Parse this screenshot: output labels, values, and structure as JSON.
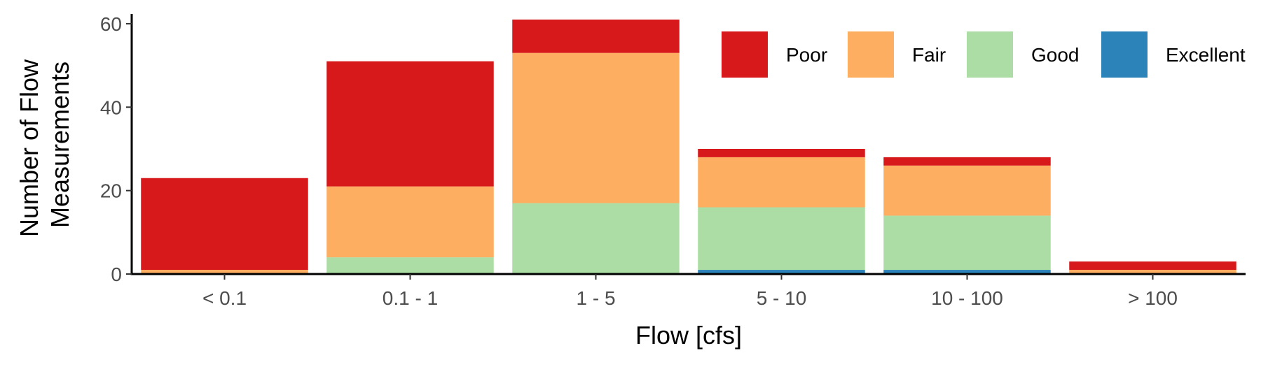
{
  "chart_data": {
    "type": "bar",
    "stacked": true,
    "title": "",
    "xlabel": "Flow [cfs]",
    "ylabel_lines": [
      "Number of Flow",
      "Measurements"
    ],
    "ylim": [
      0,
      62
    ],
    "yticks": [
      0,
      20,
      40,
      60
    ],
    "grid": false,
    "legend_position": "top-right",
    "categories": [
      "< 0.1",
      "0.1 - 1",
      "1 - 5",
      "5 - 10",
      "10 - 100",
      "> 100"
    ],
    "series": [
      {
        "name": "Excellent",
        "color": "#2b83ba",
        "values": [
          0,
          0,
          0,
          1,
          1,
          0
        ]
      },
      {
        "name": "Good",
        "color": "#abdda4",
        "values": [
          0,
          4,
          17,
          15,
          13,
          0
        ]
      },
      {
        "name": "Fair",
        "color": "#fdae61",
        "values": [
          1,
          17,
          36,
          12,
          12,
          1
        ]
      },
      {
        "name": "Poor",
        "color": "#d7191c",
        "values": [
          22,
          30,
          8,
          2,
          2,
          2
        ]
      }
    ],
    "legend_order": [
      "Poor",
      "Fair",
      "Good",
      "Excellent"
    ]
  }
}
